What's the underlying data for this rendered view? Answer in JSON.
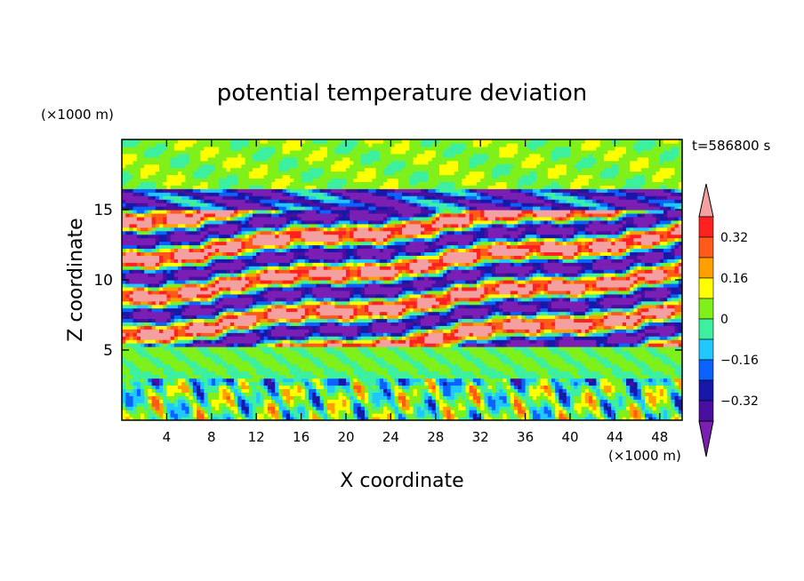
{
  "chart_data": {
    "type": "heatmap",
    "title": "potential temperature deviation",
    "xlabel": "X coordinate",
    "ylabel": "Z coordinate",
    "x_unit": "(×1000 m)",
    "y_unit": "(×1000 m)",
    "time_label": "t=586800 s",
    "xlim": [
      0,
      50
    ],
    "ylim": [
      0,
      20
    ],
    "x_ticks": [
      4,
      8,
      12,
      16,
      20,
      24,
      28,
      32,
      36,
      40,
      44,
      48
    ],
    "y_ticks": [
      5,
      10,
      15
    ],
    "colorbar": {
      "levels": [
        -0.4,
        -0.32,
        -0.24,
        -0.16,
        -0.08,
        0,
        0.08,
        0.16,
        0.24,
        0.32,
        0.4
      ],
      "tick_labels": [
        "0.32",
        "0.16",
        "0",
        "−0.16",
        "−0.32"
      ],
      "tick_values": [
        0.32,
        0.16,
        0,
        -0.16,
        -0.32
      ],
      "colors": [
        "#7a1fb4",
        "#4a0fa0",
        "#1818a8",
        "#0a62ff",
        "#21c8ff",
        "#3df0a0",
        "#7ff01a",
        "#ffff00",
        "#ffa000",
        "#ff5a1a",
        "#ff2020",
        "#f5a0a0"
      ]
    }
  }
}
